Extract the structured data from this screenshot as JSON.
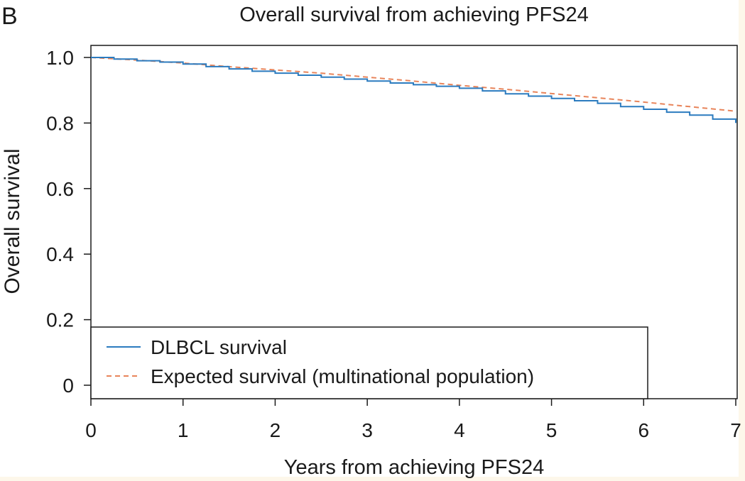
{
  "panel_label": "B",
  "chart_data": {
    "type": "line",
    "title": "Overall survival from achieving PFS24",
    "xlabel": "Years from achieving PFS24",
    "ylabel": "Overall survival",
    "xlim": [
      0,
      7
    ],
    "ylim": [
      0,
      1.0
    ],
    "x_ticks": [
      0,
      1,
      2,
      3,
      4,
      5,
      6,
      7
    ],
    "x_tick_labels": [
      "0",
      "1",
      "2",
      "3",
      "4",
      "5",
      "6",
      "7"
    ],
    "y_ticks": [
      0,
      0.2,
      0.4,
      0.6,
      0.8,
      1.0
    ],
    "y_tick_labels": [
      "0",
      "0.2",
      "0.4",
      "0.6",
      "0.8",
      "1.0"
    ],
    "grid": false,
    "legend": {
      "position": "bottom-left",
      "entries": [
        "DLBCL survival",
        "Expected survival (multinational population)"
      ]
    },
    "series": [
      {
        "name": "DLBCL survival",
        "style": "step",
        "color": "#2b7bbf",
        "x": [
          0,
          0.25,
          0.5,
          0.75,
          1.0,
          1.25,
          1.5,
          1.75,
          2.0,
          2.25,
          2.5,
          2.75,
          3.0,
          3.25,
          3.5,
          3.75,
          4.0,
          4.25,
          4.5,
          4.75,
          5.0,
          5.25,
          5.5,
          5.75,
          6.0,
          6.25,
          6.5,
          6.75,
          7.0
        ],
        "values": [
          1.0,
          0.995,
          0.99,
          0.986,
          0.98,
          0.972,
          0.965,
          0.958,
          0.952,
          0.946,
          0.94,
          0.934,
          0.928,
          0.922,
          0.917,
          0.912,
          0.906,
          0.898,
          0.889,
          0.882,
          0.875,
          0.868,
          0.86,
          0.85,
          0.842,
          0.833,
          0.824,
          0.812,
          0.8
        ]
      },
      {
        "name": "Expected survival (multinational population)",
        "style": "dashed",
        "color": "#e8845a",
        "x": [
          0,
          0.5,
          1.0,
          1.5,
          2.0,
          2.5,
          3.0,
          3.5,
          4.0,
          4.5,
          5.0,
          5.5,
          6.0,
          6.5,
          7.0
        ],
        "values": [
          1.0,
          0.992,
          0.983,
          0.972,
          0.962,
          0.952,
          0.94,
          0.928,
          0.915,
          0.903,
          0.89,
          0.877,
          0.864,
          0.85,
          0.836
        ]
      }
    ]
  }
}
